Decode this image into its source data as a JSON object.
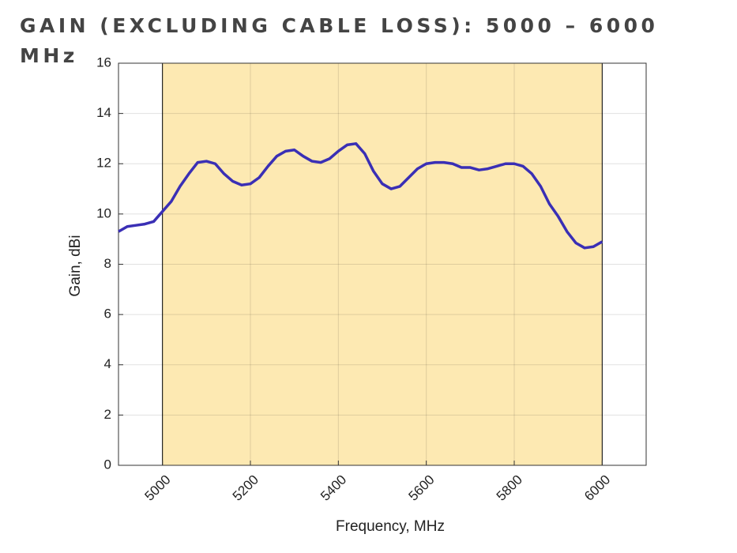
{
  "chart_data": {
    "type": "line",
    "title": "GAIN (EXCLUDING CABLE LOSS): 5000 – 6000 MHz",
    "x_label": "Frequency, MHz",
    "y_label": "Gain, dBi",
    "x": [
      4900,
      4920,
      4940,
      4960,
      4980,
      5000,
      5020,
      5040,
      5060,
      5080,
      5100,
      5120,
      5140,
      5160,
      5180,
      5200,
      5220,
      5240,
      5260,
      5280,
      5300,
      5320,
      5340,
      5360,
      5380,
      5400,
      5420,
      5440,
      5460,
      5480,
      5500,
      5520,
      5540,
      5560,
      5580,
      5600,
      5620,
      5640,
      5660,
      5680,
      5700,
      5720,
      5740,
      5760,
      5780,
      5800,
      5820,
      5840,
      5860,
      5880,
      5900,
      5920,
      5940,
      5960,
      5980,
      6000
    ],
    "series": [
      {
        "color": "#3a2fb5",
        "values": [
          9.3,
          9.5,
          9.55,
          9.6,
          9.7,
          10.1,
          10.5,
          11.1,
          11.6,
          12.05,
          12.1,
          12.0,
          11.6,
          11.3,
          11.15,
          11.2,
          11.45,
          11.9,
          12.3,
          12.5,
          12.55,
          12.3,
          12.1,
          12.05,
          12.2,
          12.5,
          12.75,
          12.8,
          12.4,
          11.7,
          11.2,
          11.0,
          11.1,
          11.45,
          11.8,
          12.0,
          12.05,
          12.05,
          12.0,
          11.85,
          11.85,
          11.75,
          11.8,
          11.9,
          12.0,
          12.0,
          11.9,
          11.6,
          11.1,
          10.4,
          9.9,
          9.3,
          8.85,
          8.65,
          8.7,
          8.9
        ]
      }
    ],
    "xlim": [
      4900,
      6100
    ],
    "xticks": [
      5000,
      5200,
      5400,
      5600,
      5800,
      6000
    ],
    "ylim": [
      0,
      16
    ],
    "yticks": [
      0,
      2,
      4,
      6,
      8,
      10,
      12,
      14,
      16
    ],
    "grid": true,
    "shaded_region": {
      "x": [
        5000,
        6000
      ],
      "color": "#fde9b2"
    }
  }
}
